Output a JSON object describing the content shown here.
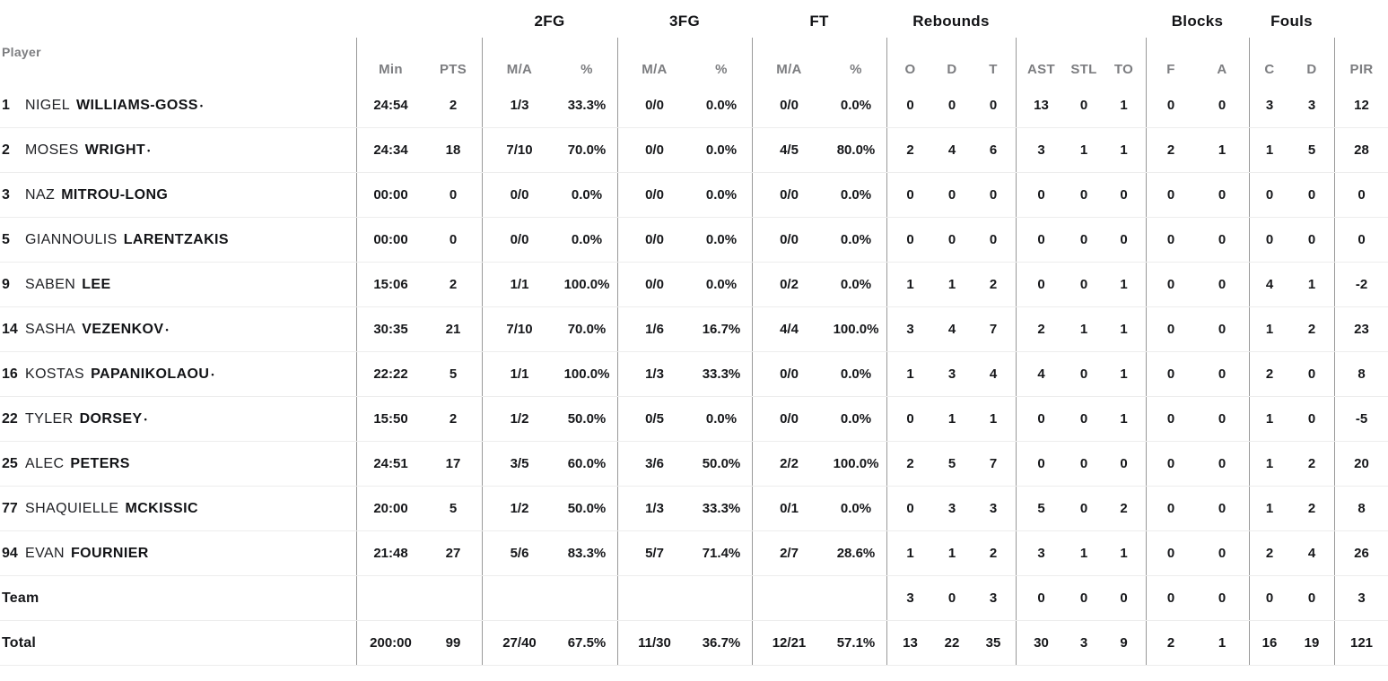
{
  "starter_mark": "•",
  "colors": {
    "text": "#16171a",
    "header_gray": "#7c7d80",
    "divider": "#999999",
    "row_line": "#ededed"
  },
  "header": {
    "player_label": "Player",
    "groups": [
      "2FG",
      "3FG",
      "FT",
      "Rebounds",
      "Blocks",
      "Fouls"
    ],
    "cols": {
      "min": "Min",
      "pts": "PTS",
      "ma": "M/A",
      "pct": "%",
      "o": "O",
      "d": "D",
      "t": "T",
      "ast": "AST",
      "stl": "STL",
      "to": "TO",
      "f": "F",
      "a": "A",
      "c": "C",
      "d2": "D",
      "pir": "PIR"
    }
  },
  "rows": [
    {
      "num": "1",
      "first": "NIGEL",
      "last": "WILLIAMS-GOSS",
      "starter": true,
      "min": "24:54",
      "pts": "2",
      "fg2": "1/3",
      "fg2p": "33.3%",
      "fg3": "0/0",
      "fg3p": "0.0%",
      "ft": "0/0",
      "ftp": "0.0%",
      "o": "0",
      "d": "0",
      "t": "0",
      "ast": "13",
      "stl": "0",
      "to": "1",
      "bf": "0",
      "ba": "0",
      "fc": "3",
      "fd": "3",
      "pir": "12"
    },
    {
      "num": "2",
      "first": "MOSES",
      "last": "WRIGHT",
      "starter": true,
      "min": "24:34",
      "pts": "18",
      "fg2": "7/10",
      "fg2p": "70.0%",
      "fg3": "0/0",
      "fg3p": "0.0%",
      "ft": "4/5",
      "ftp": "80.0%",
      "o": "2",
      "d": "4",
      "t": "6",
      "ast": "3",
      "stl": "1",
      "to": "1",
      "bf": "2",
      "ba": "1",
      "fc": "1",
      "fd": "5",
      "pir": "28"
    },
    {
      "num": "3",
      "first": "NAZ",
      "last": "MITROU-LONG",
      "starter": false,
      "min": "00:00",
      "pts": "0",
      "fg2": "0/0",
      "fg2p": "0.0%",
      "fg3": "0/0",
      "fg3p": "0.0%",
      "ft": "0/0",
      "ftp": "0.0%",
      "o": "0",
      "d": "0",
      "t": "0",
      "ast": "0",
      "stl": "0",
      "to": "0",
      "bf": "0",
      "ba": "0",
      "fc": "0",
      "fd": "0",
      "pir": "0"
    },
    {
      "num": "5",
      "first": "GIANNOULIS",
      "last": "LARENTZAKIS",
      "starter": false,
      "min": "00:00",
      "pts": "0",
      "fg2": "0/0",
      "fg2p": "0.0%",
      "fg3": "0/0",
      "fg3p": "0.0%",
      "ft": "0/0",
      "ftp": "0.0%",
      "o": "0",
      "d": "0",
      "t": "0",
      "ast": "0",
      "stl": "0",
      "to": "0",
      "bf": "0",
      "ba": "0",
      "fc": "0",
      "fd": "0",
      "pir": "0"
    },
    {
      "num": "9",
      "first": "SABEN",
      "last": "LEE",
      "starter": false,
      "min": "15:06",
      "pts": "2",
      "fg2": "1/1",
      "fg2p": "100.0%",
      "fg3": "0/0",
      "fg3p": "0.0%",
      "ft": "0/2",
      "ftp": "0.0%",
      "o": "1",
      "d": "1",
      "t": "2",
      "ast": "0",
      "stl": "0",
      "to": "1",
      "bf": "0",
      "ba": "0",
      "fc": "4",
      "fd": "1",
      "pir": "-2"
    },
    {
      "num": "14",
      "first": "SASHA",
      "last": "VEZENKOV",
      "starter": true,
      "min": "30:35",
      "pts": "21",
      "fg2": "7/10",
      "fg2p": "70.0%",
      "fg3": "1/6",
      "fg3p": "16.7%",
      "ft": "4/4",
      "ftp": "100.0%",
      "o": "3",
      "d": "4",
      "t": "7",
      "ast": "2",
      "stl": "1",
      "to": "1",
      "bf": "0",
      "ba": "0",
      "fc": "1",
      "fd": "2",
      "pir": "23"
    },
    {
      "num": "16",
      "first": "KOSTAS",
      "last": "PAPANIKOLAOU",
      "starter": true,
      "min": "22:22",
      "pts": "5",
      "fg2": "1/1",
      "fg2p": "100.0%",
      "fg3": "1/3",
      "fg3p": "33.3%",
      "ft": "0/0",
      "ftp": "0.0%",
      "o": "1",
      "d": "3",
      "t": "4",
      "ast": "4",
      "stl": "0",
      "to": "1",
      "bf": "0",
      "ba": "0",
      "fc": "2",
      "fd": "0",
      "pir": "8"
    },
    {
      "num": "22",
      "first": "TYLER",
      "last": "DORSEY",
      "starter": true,
      "min": "15:50",
      "pts": "2",
      "fg2": "1/2",
      "fg2p": "50.0%",
      "fg3": "0/5",
      "fg3p": "0.0%",
      "ft": "0/0",
      "ftp": "0.0%",
      "o": "0",
      "d": "1",
      "t": "1",
      "ast": "0",
      "stl": "0",
      "to": "1",
      "bf": "0",
      "ba": "0",
      "fc": "1",
      "fd": "0",
      "pir": "-5"
    },
    {
      "num": "25",
      "first": "ALEC",
      "last": "PETERS",
      "starter": false,
      "min": "24:51",
      "pts": "17",
      "fg2": "3/5",
      "fg2p": "60.0%",
      "fg3": "3/6",
      "fg3p": "50.0%",
      "ft": "2/2",
      "ftp": "100.0%",
      "o": "2",
      "d": "5",
      "t": "7",
      "ast": "0",
      "stl": "0",
      "to": "0",
      "bf": "0",
      "ba": "0",
      "fc": "1",
      "fd": "2",
      "pir": "20"
    },
    {
      "num": "77",
      "first": "SHAQUIELLE",
      "last": "MCKISSIC",
      "starter": false,
      "min": "20:00",
      "pts": "5",
      "fg2": "1/2",
      "fg2p": "50.0%",
      "fg3": "1/3",
      "fg3p": "33.3%",
      "ft": "0/1",
      "ftp": "0.0%",
      "o": "0",
      "d": "3",
      "t": "3",
      "ast": "5",
      "stl": "0",
      "to": "2",
      "bf": "0",
      "ba": "0",
      "fc": "1",
      "fd": "2",
      "pir": "8"
    },
    {
      "num": "94",
      "first": "EVAN",
      "last": "FOURNIER",
      "starter": false,
      "min": "21:48",
      "pts": "27",
      "fg2": "5/6",
      "fg2p": "83.3%",
      "fg3": "5/7",
      "fg3p": "71.4%",
      "ft": "2/7",
      "ftp": "28.6%",
      "o": "1",
      "d": "1",
      "t": "2",
      "ast": "3",
      "stl": "1",
      "to": "1",
      "bf": "0",
      "ba": "0",
      "fc": "2",
      "fd": "4",
      "pir": "26"
    },
    {
      "label": "Team",
      "o": "3",
      "d": "0",
      "t": "3",
      "ast": "0",
      "stl": "0",
      "to": "0",
      "bf": "0",
      "ba": "0",
      "fc": "0",
      "fd": "0",
      "pir": "3"
    },
    {
      "label": "Total",
      "min": "200:00",
      "pts": "99",
      "fg2": "27/40",
      "fg2p": "67.5%",
      "fg3": "11/30",
      "fg3p": "36.7%",
      "ft": "12/21",
      "ftp": "57.1%",
      "o": "13",
      "d": "22",
      "t": "35",
      "ast": "30",
      "stl": "3",
      "to": "9",
      "bf": "2",
      "ba": "1",
      "fc": "16",
      "fd": "19",
      "pir": "121"
    }
  ]
}
